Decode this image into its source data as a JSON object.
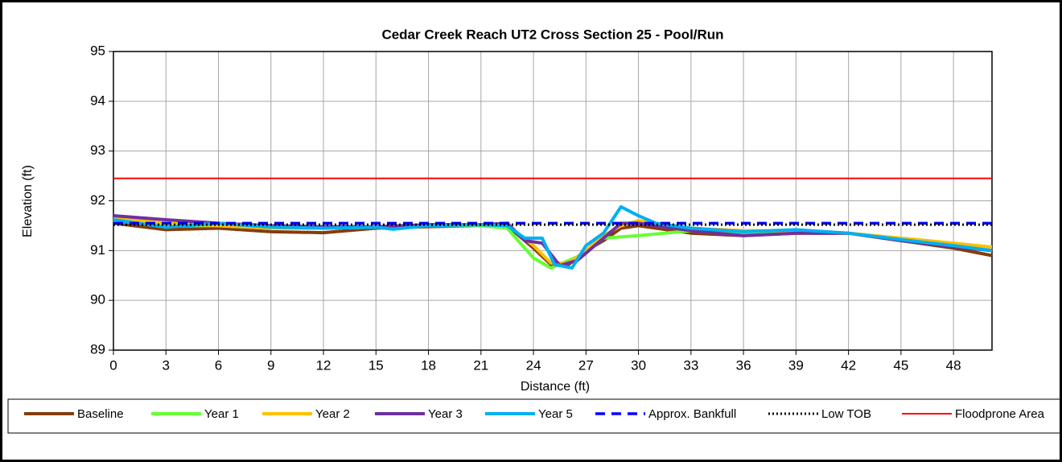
{
  "chart_data": {
    "type": "line",
    "title": "Cedar Creek Reach UT2 Cross Section 25 - Pool/Run",
    "xlabel": "Distance (ft)",
    "ylabel": "Elevation (ft)",
    "xlim": [
      0,
      50.2
    ],
    "xticks": [
      0,
      3,
      6,
      9,
      12,
      15,
      18,
      21,
      24,
      27,
      30,
      33,
      36,
      39,
      42,
      45,
      48
    ],
    "ylim": [
      89,
      95
    ],
    "yticks": [
      89,
      90,
      91,
      92,
      93,
      94,
      95
    ],
    "grid": true,
    "legend": "bottom",
    "series": [
      {
        "name": "Baseline",
        "color": "#843C0C",
        "style": "solid",
        "x": [
          0,
          3,
          6,
          9,
          12,
          15,
          18,
          21,
          22.5,
          24,
          25,
          26,
          27,
          28,
          29,
          30,
          33,
          36,
          39,
          42,
          45,
          48,
          50.2
        ],
        "values": [
          91.55,
          91.42,
          91.45,
          91.38,
          91.36,
          91.45,
          91.48,
          91.5,
          91.5,
          91.05,
          90.72,
          90.72,
          91.0,
          91.2,
          91.45,
          91.5,
          91.35,
          91.3,
          91.35,
          91.35,
          91.2,
          91.05,
          90.9
        ]
      },
      {
        "name": "Year 1",
        "color": "#66FF33",
        "style": "solid",
        "x": [
          0,
          3,
          6,
          9,
          12,
          15,
          18,
          21,
          22.5,
          24,
          25,
          26,
          27,
          28,
          30,
          33,
          36,
          39,
          42,
          45,
          48,
          50.2
        ],
        "values": [
          91.6,
          91.5,
          91.5,
          91.45,
          91.45,
          91.47,
          91.5,
          91.5,
          91.45,
          90.85,
          90.65,
          90.8,
          90.95,
          91.25,
          91.3,
          91.4,
          91.35,
          91.4,
          91.35,
          91.2,
          91.1,
          91.0
        ]
      },
      {
        "name": "Year 2",
        "color": "#FFC000",
        "style": "solid",
        "x": [
          0,
          3,
          6,
          9,
          12,
          15,
          18,
          21,
          22.5,
          24,
          25,
          26,
          27,
          28,
          29,
          30,
          33,
          36,
          39,
          42,
          45,
          48,
          50.2
        ],
        "values": [
          91.65,
          91.55,
          91.5,
          91.45,
          91.45,
          91.47,
          91.5,
          91.52,
          91.52,
          91.1,
          90.75,
          90.75,
          91.0,
          91.3,
          91.5,
          91.6,
          91.45,
          91.4,
          91.4,
          91.35,
          91.25,
          91.15,
          91.07
        ]
      },
      {
        "name": "Year 3",
        "color": "#7030A0",
        "style": "solid",
        "x": [
          0,
          3,
          6,
          9,
          12,
          15,
          18,
          21,
          22.5,
          23.5,
          24.5,
          25.5,
          26.5,
          27.5,
          29,
          30,
          33,
          36,
          39,
          42,
          45,
          48,
          50.2
        ],
        "values": [
          91.7,
          91.62,
          91.55,
          91.5,
          91.48,
          91.48,
          91.52,
          91.52,
          91.55,
          91.2,
          91.15,
          90.7,
          90.8,
          91.1,
          91.55,
          91.55,
          91.4,
          91.3,
          91.35,
          91.35,
          91.2,
          91.08,
          91.0
        ]
      },
      {
        "name": "Year 5",
        "color": "#00B0F0",
        "style": "solid",
        "x": [
          0,
          3,
          6,
          9,
          12,
          15,
          16,
          18,
          21,
          22.5,
          23.5,
          24.5,
          25.2,
          26.2,
          27,
          28,
          29,
          30,
          31,
          33,
          36,
          39,
          42,
          45,
          48,
          50.2
        ],
        "values": [
          91.62,
          91.47,
          91.55,
          91.47,
          91.45,
          91.47,
          91.43,
          91.5,
          91.52,
          91.5,
          91.25,
          91.25,
          90.72,
          90.65,
          91.1,
          91.35,
          91.88,
          91.7,
          91.55,
          91.45,
          91.38,
          91.42,
          91.35,
          91.22,
          91.1,
          91.0
        ]
      },
      {
        "name": "Approx. Bankfull",
        "color": "#0000FF",
        "style": "dashed",
        "x": [
          0,
          50.2
        ],
        "values": [
          91.55,
          91.55
        ]
      },
      {
        "name": "Low TOB",
        "color": "#000000",
        "style": "dotted",
        "x": [
          0,
          50.2
        ],
        "values": [
          91.52,
          91.52
        ]
      },
      {
        "name": "Floodprone Area",
        "color": "#FF0000",
        "style": "solid",
        "x": [
          0,
          50.2
        ],
        "values": [
          92.45,
          92.45
        ]
      }
    ]
  }
}
